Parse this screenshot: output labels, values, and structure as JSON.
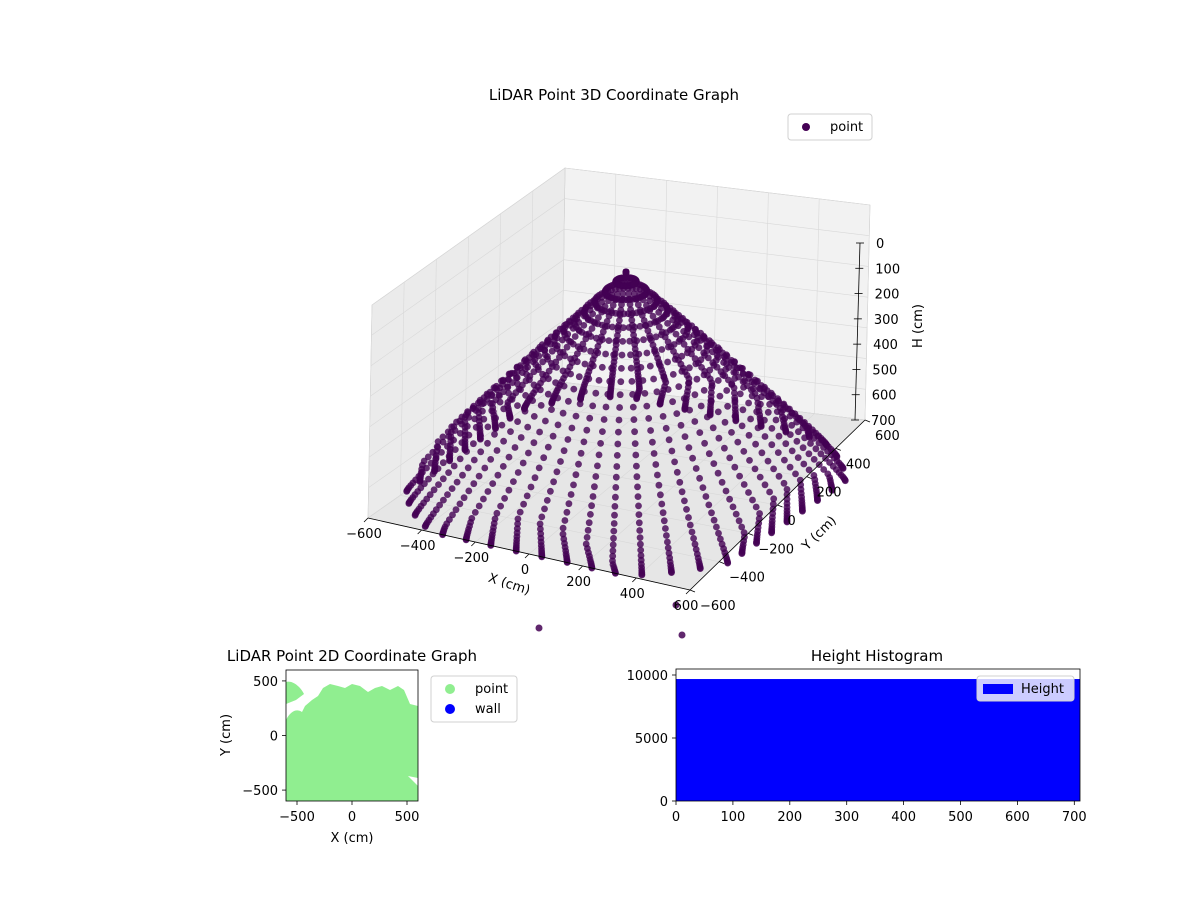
{
  "chart_data": [
    {
      "type": "scatter",
      "projection": "3d",
      "title": "LiDAR Point 3D Coordinate Graph",
      "xlabel": "X (cm)",
      "ylabel": "Y (cm)",
      "zlabel": "H (cm)",
      "xlim": [
        -600,
        600
      ],
      "ylim": [
        -600,
        600
      ],
      "zlim": [
        0,
        700
      ],
      "z_inverted": true,
      "xticks": [
        "−600",
        "−400",
        "−200",
        "0",
        "200",
        "400",
        "600"
      ],
      "yticks": [
        "−600",
        "−400",
        "−200",
        "0",
        "200",
        "400",
        "600"
      ],
      "zticks": [
        "0",
        "100",
        "200",
        "300",
        "400",
        "500",
        "600",
        "700"
      ],
      "grid": true,
      "legend": {
        "placement": "top-right",
        "entries": [
          "point"
        ]
      },
      "series": [
        {
          "name": "point",
          "color": "#440154",
          "shape": "dome-shaped bundle of curved scan arcs spanning X −600…600, Y −600…600, H 0…700"
        }
      ]
    },
    {
      "type": "scatter",
      "title": "LiDAR Point 2D Coordinate Graph",
      "xlabel": "X (cm)",
      "ylabel": "Y (cm)",
      "xlim": [
        -600,
        600
      ],
      "ylim": [
        -600,
        600
      ],
      "xticks": [
        "−500",
        "0",
        "500"
      ],
      "yticks": [
        "−500",
        "0",
        "500"
      ],
      "legend": {
        "placement": "outside-right",
        "entries": [
          "point",
          "wall"
        ]
      },
      "series": [
        {
          "name": "point",
          "color": "#90ee90"
        },
        {
          "name": "wall",
          "color": "#0000ff"
        }
      ]
    },
    {
      "type": "bar",
      "subtype": "histogram",
      "title": "Height Histogram",
      "xlim": [
        0,
        710
      ],
      "ylim": [
        0,
        10000
      ],
      "xticks": [
        "0",
        "100",
        "200",
        "300",
        "400",
        "500",
        "600",
        "700"
      ],
      "yticks": [
        "0",
        "5000",
        "10000"
      ],
      "color": "#0000ff",
      "bin_count": 9680,
      "legend": {
        "placement": "top-right",
        "entries": [
          "Height"
        ]
      },
      "series": [
        {
          "name": "Height"
        }
      ]
    }
  ]
}
